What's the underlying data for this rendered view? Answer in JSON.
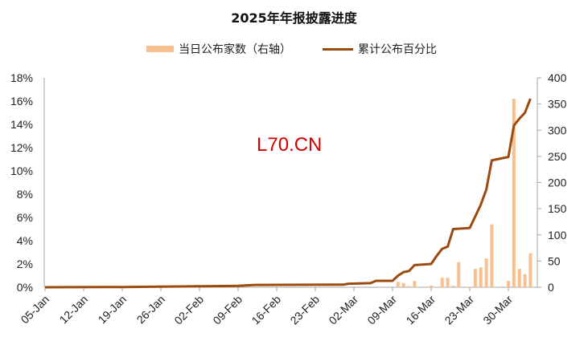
{
  "header": {
    "title": "2025年年报披露进度"
  },
  "legend": {
    "bar_label": "当日公布家数（右轴）",
    "line_label": "累计公布百分比"
  },
  "watermark": "L70.CN",
  "colors": {
    "bar": "#f8c08e",
    "line": "#9c4a0e",
    "axis": "#a6a6a6",
    "watermark": "#d40000"
  },
  "chart_data": {
    "type": "bar+line",
    "title": "2025年年报披露进度",
    "xlabel": "",
    "ylabel_left": "累计公布百分比",
    "ylabel_right": "当日公布家数",
    "x_tick_labels": [
      "05-Jan",
      "12-Jan",
      "19-Jan",
      "26-Jan",
      "02-Feb",
      "09-Feb",
      "16-Feb",
      "23-Feb",
      "02-Mar",
      "09-Mar",
      "16-Mar",
      "23-Mar",
      "30-Mar"
    ],
    "y_left_ticks": [
      "0%",
      "2%",
      "4%",
      "6%",
      "8%",
      "10%",
      "12%",
      "14%",
      "16%",
      "18%"
    ],
    "y_right_ticks": [
      "0",
      "50",
      "100",
      "150",
      "200",
      "250",
      "300",
      "350",
      "400"
    ],
    "ylim_left": [
      0,
      18
    ],
    "ylim_right": [
      0,
      400
    ],
    "x_start": "2025-01-05",
    "x_end": "2025-04-03",
    "grid": false,
    "legend_position": "top",
    "series": [
      {
        "name": "当日公布家数（右轴）",
        "type": "bar",
        "axis": "right",
        "points": [
          {
            "date": "03-10",
            "value": 10
          },
          {
            "date": "03-11",
            "value": 8
          },
          {
            "date": "03-12",
            "value": 2
          },
          {
            "date": "03-13",
            "value": 12
          },
          {
            "date": "03-16",
            "value": 3
          },
          {
            "date": "03-17",
            "value": 1
          },
          {
            "date": "03-18",
            "value": 18
          },
          {
            "date": "03-19",
            "value": 18
          },
          {
            "date": "03-20",
            "value": 3
          },
          {
            "date": "03-21",
            "value": 48
          },
          {
            "date": "03-23",
            "value": 1
          },
          {
            "date": "03-24",
            "value": 35
          },
          {
            "date": "03-25",
            "value": 38
          },
          {
            "date": "03-26",
            "value": 55
          },
          {
            "date": "03-27",
            "value": 120
          },
          {
            "date": "03-30",
            "value": 12
          },
          {
            "date": "03-31",
            "value": 360
          },
          {
            "date": "04-01",
            "value": 35
          },
          {
            "date": "04-02",
            "value": 25
          },
          {
            "date": "04-03",
            "value": 65
          }
        ]
      },
      {
        "name": "累计公布百分比",
        "type": "line",
        "axis": "left",
        "points": [
          {
            "date": "01-05",
            "value": 0.0
          },
          {
            "date": "01-19",
            "value": 0.02
          },
          {
            "date": "02-02",
            "value": 0.08
          },
          {
            "date": "02-09",
            "value": 0.12
          },
          {
            "date": "02-12",
            "value": 0.2
          },
          {
            "date": "02-28",
            "value": 0.22
          },
          {
            "date": "03-01",
            "value": 0.3
          },
          {
            "date": "03-05",
            "value": 0.35
          },
          {
            "date": "03-06",
            "value": 0.55
          },
          {
            "date": "03-09",
            "value": 0.55
          },
          {
            "date": "03-10",
            "value": 1.0
          },
          {
            "date": "03-11",
            "value": 1.3
          },
          {
            "date": "03-12",
            "value": 1.4
          },
          {
            "date": "03-13",
            "value": 1.9
          },
          {
            "date": "03-16",
            "value": 2.0
          },
          {
            "date": "03-17",
            "value": 2.7
          },
          {
            "date": "03-18",
            "value": 3.3
          },
          {
            "date": "03-19",
            "value": 3.5
          },
          {
            "date": "03-20",
            "value": 5.0
          },
          {
            "date": "03-23",
            "value": 5.1
          },
          {
            "date": "03-24",
            "value": 6.1
          },
          {
            "date": "03-25",
            "value": 7.1
          },
          {
            "date": "03-26",
            "value": 8.4
          },
          {
            "date": "03-27",
            "value": 10.9
          },
          {
            "date": "03-30",
            "value": 11.2
          },
          {
            "date": "03-31",
            "value": 13.9
          },
          {
            "date": "04-01",
            "value": 14.5
          },
          {
            "date": "04-02",
            "value": 15.0
          },
          {
            "date": "04-03",
            "value": 16.2
          }
        ]
      }
    ]
  }
}
